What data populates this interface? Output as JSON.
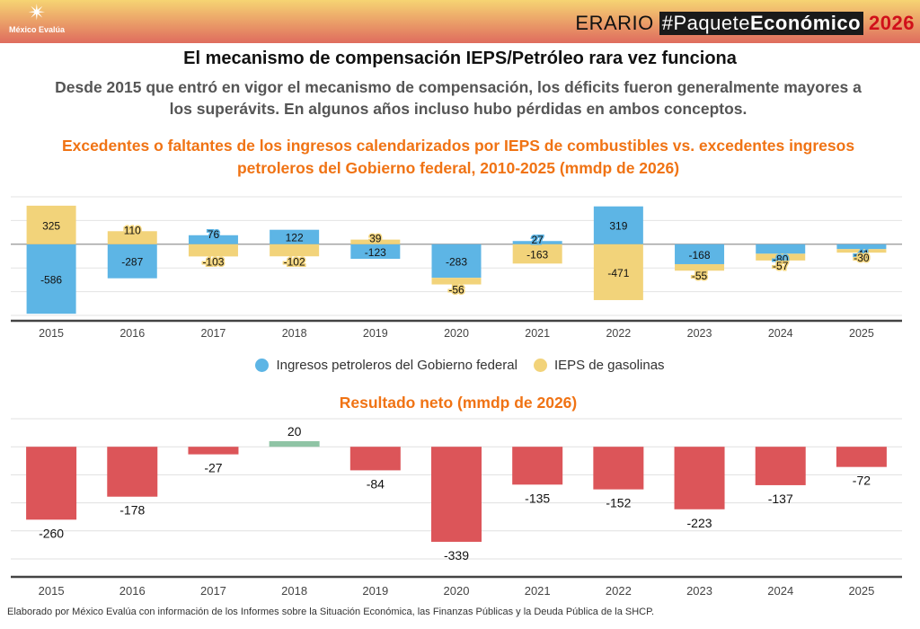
{
  "header": {
    "logo_name": "México Evalúa",
    "logo_icon": "star-burst-icon",
    "brand_prefix": "ERARIO",
    "brand_tag_light": "#Paquete",
    "brand_tag_bold": "Económico",
    "brand_year": "2026"
  },
  "title": "El mecanismo de compensación IEPS/Petróleo rara vez funciona",
  "subtitle": "Desde 2015 que entró en vigor el mecanismo de compensación, los déficits fueron generalmente mayores a los superávits. En algunos años incluso hubo pérdidas en ambos conceptos.",
  "footer": "Elaborado por México Evalúa con información de los Informes sobre la Situación Económica, las Finanzas Públicas y la Deuda Pública de la SHCP.",
  "chart_data": [
    {
      "type": "bar",
      "title": "Excedentes o faltantes de los ingresos calendarizados por IEPS de combustibles vs. excedentes ingresos petroleros del Gobierno federal, 2010-2025 (mmdp de 2026)",
      "xlabel": "",
      "ylabel": "",
      "ylim": [
        -600,
        400
      ],
      "grid_step": 200,
      "grid": true,
      "legend_position": "bottom",
      "categories": [
        "2015",
        "2016",
        "2017",
        "2018",
        "2019",
        "2020",
        "2021",
        "2022",
        "2023",
        "2024",
        "2025"
      ],
      "series": [
        {
          "name": "Ingresos petroleros del Gobierno federal",
          "color": "#5db5e5",
          "values": [
            -586,
            -287,
            76,
            122,
            -123,
            -283,
            27,
            319,
            -168,
            -80,
            -41
          ]
        },
        {
          "name": "IEPS de gasolinas",
          "color": "#f2d37a",
          "values": [
            325,
            110,
            -103,
            -102,
            39,
            -56,
            -163,
            -471,
            -55,
            -57,
            -30
          ]
        }
      ]
    },
    {
      "type": "bar",
      "title": "Resultado neto (mmdp de 2026)",
      "xlabel": "",
      "ylabel": "",
      "ylim": [
        -400,
        100
      ],
      "grid_step": 100,
      "grid": true,
      "categories": [
        "2015",
        "2016",
        "2017",
        "2018",
        "2019",
        "2020",
        "2021",
        "2022",
        "2023",
        "2024",
        "2025"
      ],
      "colors": {
        "positive": "#8fc4a5",
        "negative": "#dc5559"
      },
      "values": [
        -260,
        -178,
        -27,
        20,
        -84,
        -339,
        -135,
        -152,
        -223,
        -137,
        -72
      ]
    }
  ]
}
